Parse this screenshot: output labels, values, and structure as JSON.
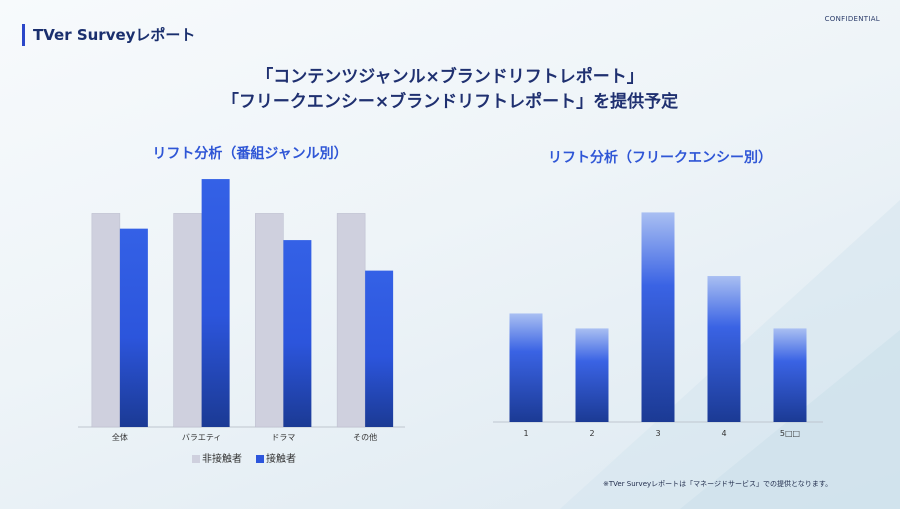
{
  "header": {
    "report_label": "TVer Surveyレポート",
    "confidential": "CONFIDENTIAL"
  },
  "headline": {
    "line1": "「コンテンツジャンル×ブランドリフトレポート」",
    "line2": "「フリークエンシー×ブランドリフトレポート」を提供予定"
  },
  "footnote": "※TVer Surveyレポートは「マネージドサービス」での提供となります。",
  "colors": {
    "accent": "#2b47c9",
    "non_exposed": "#cfd0de",
    "exposed_top": "#3461e6",
    "exposed_bottom": "#1b3a94",
    "title_blue": "#2f56d6"
  },
  "chart_data": [
    {
      "type": "bar",
      "title": "リフト分析（番組ジャンル別）",
      "categories": [
        "全体",
        "バラエティ",
        "ドラマ",
        "その他"
      ],
      "series": [
        {
          "name": "非接触者",
          "values": [
            56,
            56,
            56,
            56
          ]
        },
        {
          "name": "接触者",
          "values": [
            52,
            65,
            49,
            41
          ]
        }
      ],
      "ylim": [
        0,
        70
      ],
      "legend": "bottom",
      "grid": false
    },
    {
      "type": "bar",
      "title": "リフト分析（フリークエンシー別）",
      "categories": [
        "1",
        "2",
        "3",
        "4",
        "5□□"
      ],
      "series": [
        {
          "values": [
            29,
            25,
            56,
            39,
            25
          ]
        }
      ],
      "ylim": [
        0,
        70
      ],
      "grid": false
    }
  ]
}
